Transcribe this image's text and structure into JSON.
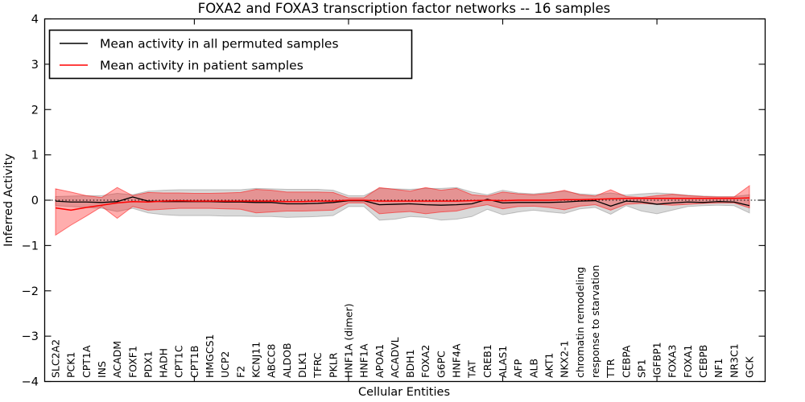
{
  "title": "FOXA2 and FOXA3 transcription factor networks -- 16 samples",
  "legend": {
    "position": "upper left",
    "items": [
      {
        "label": "Mean activity in all permuted samples",
        "color": "#000000"
      },
      {
        "label": "Mean activity in patient samples",
        "color": "#ff0000"
      }
    ]
  },
  "chart_data": {
    "type": "line",
    "title": "FOXA2 and FOXA3 transcription factor networks -- 16 samples",
    "xlabel": "Cellular Entities",
    "ylabel": "Inferred Activity",
    "ylim": [
      -4,
      4
    ],
    "yticks": [
      -4,
      -3,
      -2,
      -1,
      0,
      1,
      2,
      3,
      4
    ],
    "x_major_tick_every": 10,
    "grid": false,
    "legend_position": "upper left",
    "zero_line": {
      "y": 0,
      "style": "dotted",
      "color": "#000000"
    },
    "categories": [
      "SLC2A2",
      "PCK1",
      "CPT1A",
      "INS",
      "ACADM",
      "FOXF1",
      "PDX1",
      "HADH",
      "CPT1C",
      "CPT1B",
      "HMGCS1",
      "UCP2",
      "F2",
      "KCNJ11",
      "ABCC8",
      "ALDOB",
      "DLK1",
      "TFRC",
      "PKLR",
      "HNF1A (dimer)",
      "HNF1A",
      "APOA1",
      "ACADVL",
      "BDH1",
      "FOXA2",
      "G6PC",
      "HNF4A",
      "TAT",
      "CREB1",
      "ALAS1",
      "AFP",
      "ALB",
      "AKT1",
      "NKX2-1",
      "chromatin remodeling",
      "response to starvation",
      "TTR",
      "CEBPA",
      "SP1",
      "IGFBP1",
      "FOXA3",
      "FOXA1",
      "CEBPB",
      "NF1",
      "NR3C1",
      "GCK"
    ],
    "series": [
      {
        "name": "Mean activity in all permuted samples",
        "color": "#000000",
        "values": [
          -0.02,
          -0.04,
          -0.04,
          -0.05,
          -0.03,
          0.07,
          -0.02,
          -0.03,
          -0.03,
          -0.03,
          -0.03,
          -0.04,
          -0.04,
          -0.05,
          -0.05,
          -0.08,
          -0.08,
          -0.07,
          -0.05,
          -0.01,
          -0.01,
          -0.1,
          -0.09,
          -0.08,
          -0.1,
          -0.11,
          -0.1,
          -0.08,
          0.02,
          -0.06,
          -0.05,
          -0.05,
          -0.05,
          -0.04,
          -0.02,
          -0.01,
          -0.13,
          -0.02,
          -0.04,
          -0.09,
          -0.06,
          -0.04,
          -0.05,
          -0.03,
          -0.04,
          -0.12
        ]
      },
      {
        "name": "Mean activity in patient samples",
        "color": "#ff0000",
        "values": [
          -0.17,
          -0.22,
          -0.16,
          -0.11,
          -0.06,
          -0.03,
          -0.04,
          -0.02,
          -0.01,
          -0.02,
          -0.02,
          -0.02,
          -0.02,
          -0.02,
          -0.02,
          -0.03,
          -0.03,
          -0.02,
          -0.02,
          0.0,
          0.0,
          -0.02,
          -0.02,
          -0.02,
          -0.02,
          -0.02,
          -0.02,
          -0.01,
          0.0,
          -0.01,
          0.0,
          0.0,
          0.0,
          0.01,
          0.01,
          0.02,
          0.03,
          0.04,
          0.04,
          0.04,
          0.04,
          0.04,
          0.04,
          0.04,
          0.04,
          0.05
        ]
      }
    ],
    "bands": [
      {
        "name": "permuted-std-band",
        "fill": "rgba(128,128,128,0.30)",
        "edge": "rgba(128,128,128,0.45)",
        "upper": [
          0.08,
          0.09,
          0.1,
          0.1,
          0.15,
          0.12,
          0.2,
          0.22,
          0.23,
          0.23,
          0.23,
          0.23,
          0.23,
          0.26,
          0.25,
          0.24,
          0.24,
          0.24,
          0.22,
          0.1,
          0.1,
          0.26,
          0.25,
          0.24,
          0.26,
          0.26,
          0.28,
          0.18,
          0.12,
          0.22,
          0.16,
          0.14,
          0.17,
          0.2,
          0.14,
          0.12,
          0.16,
          0.11,
          0.14,
          0.16,
          0.14,
          0.11,
          0.09,
          0.08,
          0.08,
          0.12
        ],
        "lower": [
          -0.12,
          -0.14,
          -0.16,
          -0.18,
          -0.25,
          -0.18,
          -0.28,
          -0.32,
          -0.34,
          -0.34,
          -0.34,
          -0.35,
          -0.35,
          -0.36,
          -0.36,
          -0.38,
          -0.37,
          -0.36,
          -0.34,
          -0.14,
          -0.14,
          -0.44,
          -0.42,
          -0.36,
          -0.38,
          -0.44,
          -0.42,
          -0.36,
          -0.2,
          -0.32,
          -0.26,
          -0.22,
          -0.26,
          -0.29,
          -0.19,
          -0.16,
          -0.31,
          -0.12,
          -0.24,
          -0.3,
          -0.22,
          -0.14,
          -0.12,
          -0.11,
          -0.12,
          -0.28
        ]
      },
      {
        "name": "patient-std-band",
        "fill": "rgba(255,0,0,0.32)",
        "edge": "rgba(255,0,0,0.50)",
        "upper": [
          0.25,
          0.18,
          0.1,
          0.06,
          0.28,
          0.1,
          0.17,
          0.16,
          0.16,
          0.15,
          0.15,
          0.16,
          0.17,
          0.24,
          0.22,
          0.18,
          0.18,
          0.18,
          0.17,
          0.05,
          0.05,
          0.28,
          0.24,
          0.2,
          0.28,
          0.22,
          0.26,
          0.12,
          0.09,
          0.18,
          0.14,
          0.12,
          0.15,
          0.22,
          0.12,
          0.09,
          0.23,
          0.08,
          0.06,
          0.1,
          0.13,
          0.1,
          0.08,
          0.07,
          0.07,
          0.32
        ],
        "lower": [
          -0.77,
          -0.55,
          -0.35,
          -0.14,
          -0.4,
          -0.14,
          -0.22,
          -0.2,
          -0.18,
          -0.18,
          -0.18,
          -0.19,
          -0.2,
          -0.28,
          -0.26,
          -0.24,
          -0.24,
          -0.23,
          -0.22,
          -0.06,
          -0.06,
          -0.3,
          -0.27,
          -0.25,
          -0.3,
          -0.26,
          -0.24,
          -0.16,
          -0.1,
          -0.19,
          -0.14,
          -0.13,
          -0.16,
          -0.21,
          -0.13,
          -0.1,
          -0.22,
          -0.09,
          -0.07,
          -0.09,
          -0.11,
          -0.09,
          -0.07,
          -0.06,
          -0.06,
          -0.17
        ]
      }
    ]
  },
  "colors": {
    "background": "#ffffff",
    "spine": "#000000",
    "permuted_line": "#000000",
    "patient_line": "#ff0000"
  }
}
